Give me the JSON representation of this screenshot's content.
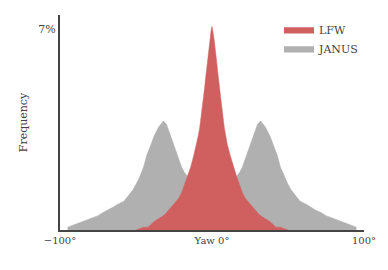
{
  "chart_data": {
    "type": "area",
    "ylabel": "Frequency",
    "series": [
      {
        "name": "JANUS",
        "color": "#b0b0b0",
        "x": [
          -95,
          -90,
          -85,
          -80,
          -75,
          -72,
          -68,
          -65,
          -62,
          -58,
          -55,
          -52,
          -50,
          -48,
          -45,
          -43,
          -40,
          -38,
          -35,
          -32,
          -30,
          -28,
          -25,
          -22,
          -20,
          -18,
          -15,
          -12,
          -10,
          -8,
          -5,
          -3,
          0,
          3,
          5,
          8,
          10,
          12,
          15,
          18,
          20,
          22,
          25,
          28,
          30,
          32,
          35,
          38,
          40,
          43,
          45,
          48,
          50,
          52,
          55,
          58,
          62,
          65,
          68,
          72,
          75,
          80,
          85,
          90,
          95
        ],
        "values": [
          0.001,
          0.002,
          0.003,
          0.004,
          0.005,
          0.006,
          0.007,
          0.008,
          0.009,
          0.01,
          0.012,
          0.014,
          0.016,
          0.018,
          0.022,
          0.026,
          0.03,
          0.033,
          0.036,
          0.038,
          0.037,
          0.034,
          0.03,
          0.025,
          0.022,
          0.02,
          0.018,
          0.016,
          0.015,
          0.014,
          0.013,
          0.013,
          0.012,
          0.013,
          0.013,
          0.014,
          0.015,
          0.016,
          0.018,
          0.02,
          0.022,
          0.025,
          0.03,
          0.034,
          0.037,
          0.038,
          0.036,
          0.033,
          0.03,
          0.026,
          0.022,
          0.018,
          0.016,
          0.014,
          0.012,
          0.01,
          0.009,
          0.008,
          0.007,
          0.006,
          0.005,
          0.004,
          0.003,
          0.002,
          0.001
        ]
      },
      {
        "name": "LFW",
        "color": "#d06060",
        "x": [
          -50,
          -45,
          -42,
          -40,
          -38,
          -35,
          -32,
          -30,
          -27,
          -25,
          -22,
          -20,
          -18,
          -16,
          -14,
          -12,
          -10,
          -9,
          -8,
          -7,
          -6,
          -5,
          -4,
          -3,
          -2,
          -1.5,
          -1,
          -0.5,
          0,
          0.5,
          1,
          1.5,
          2,
          3,
          4,
          5,
          6,
          7,
          8,
          9,
          10,
          12,
          14,
          16,
          18,
          20,
          22,
          25,
          27,
          30,
          32,
          35,
          38,
          40,
          42,
          45,
          50
        ],
        "values": [
          0.0,
          0.001,
          0.001,
          0.002,
          0.003,
          0.004,
          0.005,
          0.006,
          0.008,
          0.009,
          0.011,
          0.013,
          0.016,
          0.019,
          0.022,
          0.026,
          0.03,
          0.033,
          0.036,
          0.04,
          0.044,
          0.049,
          0.054,
          0.059,
          0.063,
          0.066,
          0.068,
          0.07,
          0.071,
          0.07,
          0.068,
          0.066,
          0.063,
          0.059,
          0.054,
          0.049,
          0.044,
          0.04,
          0.036,
          0.033,
          0.03,
          0.026,
          0.022,
          0.019,
          0.016,
          0.013,
          0.011,
          0.009,
          0.008,
          0.006,
          0.005,
          0.004,
          0.003,
          0.002,
          0.001,
          0.001,
          0.0
        ]
      }
    ],
    "xlim": [
      -100,
      100
    ],
    "xticks": [
      {
        "value": -100,
        "label": "−100°"
      },
      {
        "value": 0,
        "label": "Yaw 0°"
      },
      {
        "value": 100,
        "label": "100°"
      }
    ],
    "ylim": [
      0,
      0.075
    ],
    "yticks": [
      {
        "value": 0.07,
        "label": "7%"
      }
    ],
    "grid": false,
    "legend": "upper right"
  }
}
